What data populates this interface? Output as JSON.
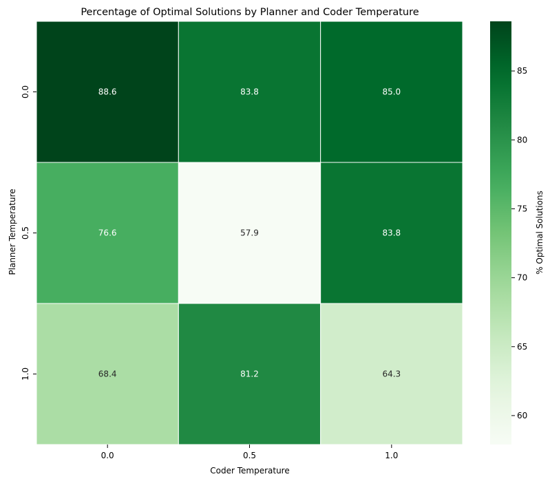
{
  "chart_data": {
    "type": "heatmap",
    "title": "Percentage of Optimal Solutions by Planner and Coder Temperature",
    "xlabel": "Coder Temperature",
    "ylabel": "Planner Temperature",
    "x_categories": [
      "0.0",
      "0.5",
      "1.0"
    ],
    "y_categories": [
      "0.0",
      "0.5",
      "1.0"
    ],
    "values": [
      [
        88.6,
        83.8,
        85.0
      ],
      [
        76.6,
        57.9,
        83.8
      ],
      [
        68.4,
        81.2,
        64.3
      ]
    ],
    "value_labels": [
      [
        "88.6",
        "83.8",
        "85.0"
      ],
      [
        "76.6",
        "57.9",
        "83.8"
      ],
      [
        "68.4",
        "81.2",
        "64.3"
      ]
    ],
    "colorbar": {
      "label": "% Optimal Solutions",
      "ticks": [
        60,
        65,
        70,
        75,
        80,
        85
      ],
      "tick_labels": [
        "60",
        "65",
        "70",
        "75",
        "80",
        "85"
      ],
      "range": [
        57.9,
        88.6
      ],
      "colormap": "Greens"
    },
    "grid": false,
    "legend": "colorbar-right"
  }
}
